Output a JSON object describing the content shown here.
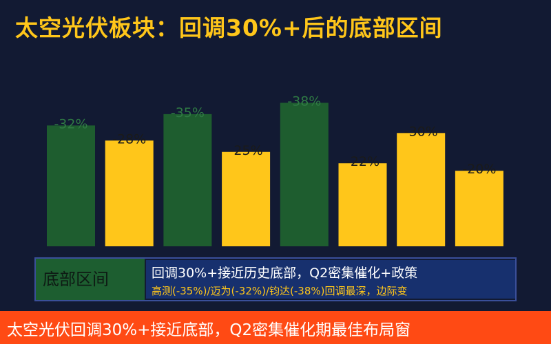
{
  "header": {
    "title": "太空光伏板块：回调30%+后的底部区间"
  },
  "chart_data": {
    "type": "bar",
    "values": [
      -32,
      -28,
      -35,
      -25,
      -38,
      -22,
      -30,
      -20
    ],
    "value_labels": [
      "-32%",
      "-28%",
      "-35%",
      "-25%",
      "-38%",
      "-22%",
      "-30%",
      "-20%"
    ],
    "ylim": [
      0,
      -45
    ],
    "colors": [
      "#1e5d2f",
      "#ffc61a",
      "#1e5d2f",
      "#ffc61a",
      "#1e5d2f",
      "#ffc61a",
      "#ffc61a",
      "#ffc61a"
    ],
    "grid": false
  },
  "panel": {
    "label": "底部区间",
    "line1": "回调30%+接近历史底部，Q2密集催化+政策",
    "line2": "高测(-35%)/迈为(-32%)/钧达(-38%)回调最深，边际变"
  },
  "footer": {
    "text": "太空光伏回调30%+接近底部，Q2密集催化期最佳布局窗"
  },
  "colors": {
    "background": "#121a33",
    "accent_yellow": "#ffc61a",
    "green": "#1e5d2f",
    "footer": "#ff4a14",
    "panel_blue": "#17306e"
  }
}
